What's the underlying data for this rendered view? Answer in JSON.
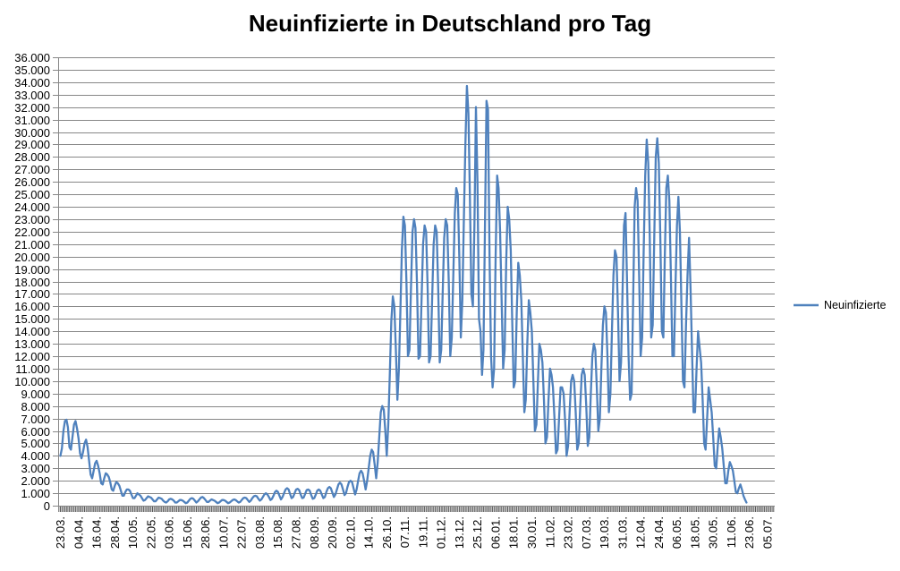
{
  "colors": {
    "series_blue": "#4f81bd",
    "gridline": "#878787",
    "axis": "#878787",
    "day_tick": "#595959",
    "text": "#000000",
    "background": "#ffffff"
  },
  "chart_data": {
    "type": "line",
    "title": "Neuinfizierte in Deutschland pro Tag",
    "legend": {
      "position": "right",
      "entries": [
        {
          "label": "Neuinfizierte",
          "color": "#4f81bd"
        }
      ]
    },
    "grid": {
      "horizontal": true,
      "vertical": false
    },
    "y": {
      "min": 0,
      "max": 36000,
      "tick_step": 1000,
      "number_format": "de",
      "tick_labels_top_to_bottom": [
        "36.000",
        "35.000",
        "34.000",
        "33.000",
        "32.000",
        "31.000",
        "30.000",
        "29.000",
        "28.000",
        "27.000",
        "26.000",
        "25.000",
        "24.000",
        "23.000",
        "22.000",
        "21.000",
        "20.000",
        "19.000",
        "18.000",
        "17.000",
        "16.000",
        "15.000",
        "14.000",
        "13.000",
        "12.000",
        "11.000",
        "10.000",
        "9.000",
        "8.000",
        "7.000",
        "6.000",
        "5.000",
        "4.000",
        "3.000",
        "2.000",
        "1.000",
        "0"
      ]
    },
    "x": {
      "unit": "day",
      "tick_interval_days": 12,
      "tick_labels": [
        "23.03.",
        "04.04.",
        "16.04.",
        "28.04.",
        "10.05.",
        "22.05.",
        "03.06.",
        "15.06.",
        "28.06.",
        "10.07.",
        "22.07.",
        "03.08.",
        "15.08.",
        "27.08.",
        "08.09.",
        "20.09.",
        "02.10.",
        "14.10.",
        "26.10.",
        "07.11.",
        "19.11.",
        "01.12.",
        "13.12.",
        "25.12.",
        "06.01.",
        "18.01.",
        "30.01.",
        "11.02.",
        "23.02.",
        "07.03.",
        "19.03.",
        "31.03.",
        "12.04.",
        "24.04.",
        "06.05.",
        "18.05.",
        "30.05.",
        "11.06.",
        "23.06.",
        "05.07."
      ]
    },
    "series": [
      {
        "name": "Neuinfizierte",
        "color": "#4f81bd",
        "start_category": "23.03.",
        "values_daily": [
          4000,
          4600,
          6000,
          6800,
          6900,
          6300,
          4700,
          4500,
          5500,
          6500,
          6800,
          6200,
          5400,
          4200,
          3800,
          4300,
          5000,
          5300,
          4700,
          3600,
          2500,
          2200,
          2800,
          3400,
          3600,
          3200,
          2600,
          1800,
          1700,
          2200,
          2600,
          2500,
          2300,
          1900,
          1300,
          1200,
          1600,
          1900,
          1800,
          1600,
          1200,
          800,
          800,
          1100,
          1300,
          1300,
          1200,
          900,
          600,
          600,
          800,
          1000,
          900,
          800,
          600,
          400,
          450,
          600,
          750,
          700,
          650,
          500,
          350,
          350,
          500,
          650,
          600,
          550,
          400,
          300,
          250,
          350,
          500,
          550,
          500,
          400,
          250,
          250,
          350,
          450,
          450,
          400,
          300,
          200,
          250,
          400,
          550,
          600,
          550,
          400,
          250,
          350,
          500,
          650,
          700,
          600,
          450,
          300,
          300,
          400,
          500,
          450,
          400,
          300,
          200,
          250,
          350,
          450,
          450,
          400,
          300,
          200,
          250,
          350,
          450,
          500,
          450,
          350,
          250,
          300,
          450,
          600,
          650,
          600,
          450,
          300,
          400,
          600,
          750,
          800,
          750,
          550,
          400,
          500,
          700,
          900,
          1000,
          900,
          700,
          450,
          550,
          800,
          1100,
          1200,
          1100,
          800,
          500,
          700,
          1000,
          1300,
          1400,
          1300,
          950,
          600,
          700,
          1000,
          1300,
          1350,
          1250,
          900,
          600,
          650,
          950,
          1250,
          1300,
          1200,
          850,
          550,
          600,
          900,
          1200,
          1300,
          1200,
          900,
          600,
          700,
          1100,
          1400,
          1500,
          1400,
          1050,
          700,
          900,
          1300,
          1700,
          1850,
          1700,
          1300,
          850,
          1000,
          1500,
          1900,
          2000,
          1900,
          1400,
          900,
          1300,
          2000,
          2600,
          2800,
          2600,
          2000,
          1300,
          2000,
          3000,
          4000,
          4500,
          4300,
          3300,
          2200,
          3500,
          5500,
          7500,
          8000,
          7700,
          6000,
          4000,
          6500,
          10500,
          14800,
          16800,
          16000,
          12500,
          8500,
          11000,
          15500,
          20500,
          23200,
          22500,
          18000,
          12000,
          12500,
          17500,
          22000,
          23000,
          22300,
          17800,
          11800,
          12000,
          16500,
          21000,
          22500,
          22000,
          17500,
          11500,
          12000,
          16500,
          21000,
          22500,
          22000,
          17500,
          11500,
          12500,
          17000,
          21500,
          23000,
          22500,
          18000,
          12000,
          13500,
          18500,
          23500,
          25500,
          25000,
          20000,
          13500,
          16500,
          23000,
          29000,
          33700,
          31500,
          25000,
          17000,
          16000,
          22500,
          32000,
          26000,
          15000,
          14000,
          10500,
          12500,
          22500,
          32500,
          31800,
          20000,
          12000,
          9500,
          11000,
          20000,
          26500,
          25500,
          22000,
          16500,
          11000,
          12500,
          19500,
          24000,
          23000,
          20500,
          15000,
          9500,
          10000,
          15500,
          19500,
          18500,
          16500,
          12000,
          7500,
          8500,
          13000,
          16500,
          15500,
          14000,
          10000,
          6000,
          6500,
          10000,
          13000,
          12500,
          11500,
          8500,
          5000,
          5500,
          8500,
          11000,
          10500,
          9500,
          7000,
          4200,
          4500,
          7000,
          9500,
          9500,
          9000,
          6800,
          4000,
          4800,
          7500,
          10000,
          10500,
          10000,
          7500,
          4500,
          5000,
          8000,
          10500,
          11000,
          10500,
          8000,
          4800,
          5500,
          9000,
          12000,
          13000,
          12500,
          9500,
          6000,
          7000,
          11000,
          14500,
          16000,
          15500,
          12000,
          7500,
          9000,
          14000,
          18500,
          20500,
          20000,
          15500,
          10000,
          11500,
          17000,
          22500,
          23500,
          18000,
          12000,
          8500,
          9000,
          16500,
          24000,
          25500,
          24500,
          18500,
          12000,
          13500,
          20500,
          26500,
          29400,
          27500,
          21500,
          13500,
          14500,
          21500,
          28000,
          29500,
          27500,
          21500,
          14000,
          13500,
          20000,
          25500,
          26500,
          24500,
          18500,
          12000,
          12000,
          17500,
          22500,
          24800,
          22000,
          16000,
          10000,
          9500,
          14500,
          18500,
          21500,
          17400,
          12500,
          7500,
          7500,
          11000,
          14000,
          12700,
          11500,
          8500,
          5000,
          4500,
          7000,
          9500,
          8500,
          7500,
          5500,
          3200,
          3000,
          4800,
          6200,
          5500,
          4600,
          3200,
          1800,
          1800,
          2800,
          3500,
          3200,
          2800,
          2000,
          1100,
          1000,
          1400,
          1700,
          1300,
          800,
          500,
          250
        ]
      }
    ]
  }
}
